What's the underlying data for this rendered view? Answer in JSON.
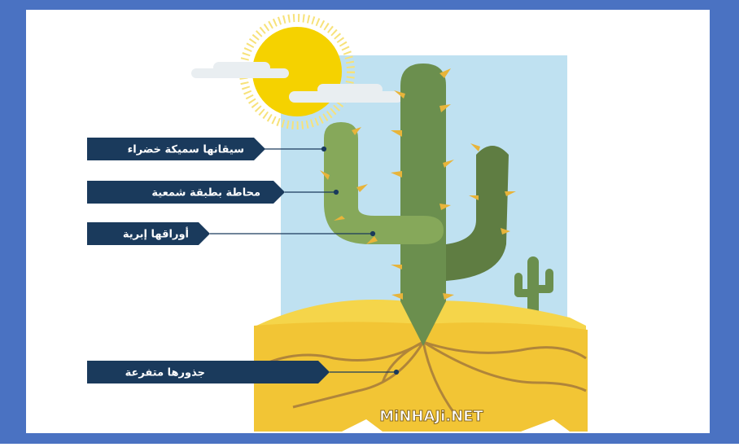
{
  "labels": [
    {
      "text": "سيقانها سميكة خضراء"
    },
    {
      "text": "محاطة بطبقة شمعية"
    },
    {
      "text": "أوراقها إبرية"
    },
    {
      "text": "جذورها متفرعة"
    }
  ],
  "watermark": "MiNHAJi.NET"
}
